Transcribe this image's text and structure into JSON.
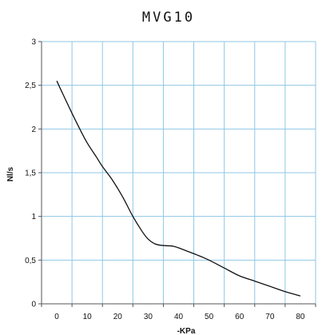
{
  "chart_data": {
    "type": "line",
    "title": "MVG10",
    "xlabel": "-KPa",
    "ylabel": "Nl/s",
    "xlim": [
      -5,
      85
    ],
    "ylim": [
      0,
      3
    ],
    "grid": true,
    "x_ticks": [
      "0",
      "10",
      "20",
      "30",
      "40",
      "50",
      "60",
      "70",
      "80"
    ],
    "y_ticks": [
      "0",
      "0,5",
      "1",
      "1,5",
      "2",
      "2,5",
      "3"
    ],
    "series": [
      {
        "color": "#111111",
        "x": [
          0,
          2,
          5,
          8,
          10,
          13,
          15,
          18,
          20,
          22,
          25,
          28,
          30,
          32,
          34,
          36,
          38,
          40,
          43,
          46,
          50,
          55,
          60,
          65,
          70,
          75,
          80
        ],
        "y": [
          2.55,
          2.4,
          2.18,
          1.97,
          1.84,
          1.68,
          1.57,
          1.43,
          1.32,
          1.2,
          1.0,
          0.83,
          0.74,
          0.69,
          0.67,
          0.665,
          0.66,
          0.64,
          0.6,
          0.56,
          0.5,
          0.41,
          0.32,
          0.26,
          0.2,
          0.14,
          0.09
        ]
      }
    ],
    "grid_color": "#8fc7e6",
    "axis_color": "#555555"
  }
}
